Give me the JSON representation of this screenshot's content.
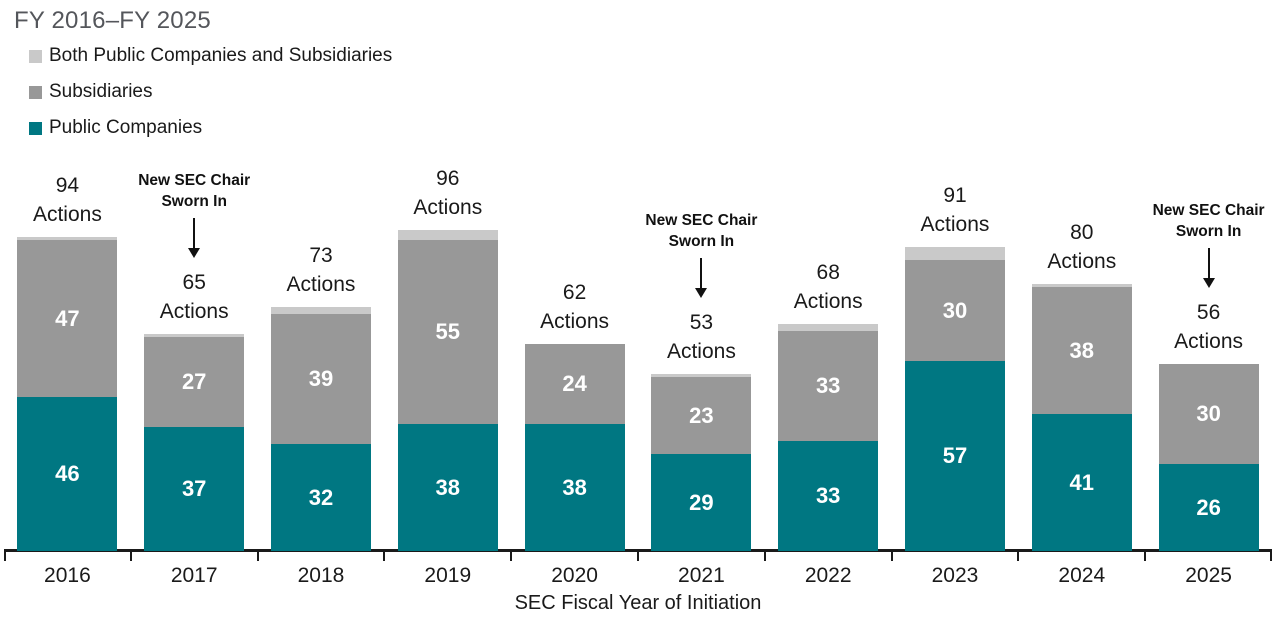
{
  "title": "FY 2016–FY 2025",
  "chart_data": {
    "type": "bar",
    "stacked": true,
    "title": "FY 2016–FY 2025",
    "xlabel": "SEC Fiscal Year of Initiation",
    "ylabel": "",
    "ylim": [
      0,
      96
    ],
    "grid": false,
    "legend_position": "top-left",
    "categories": [
      "2016",
      "2017",
      "2018",
      "2019",
      "2020",
      "2021",
      "2022",
      "2023",
      "2024",
      "2025"
    ],
    "series": [
      {
        "name": "Public Companies",
        "color": "#007782",
        "labeled": true,
        "values": [
          46,
          37,
          32,
          38,
          38,
          29,
          33,
          57,
          41,
          26
        ]
      },
      {
        "name": "Subsidiaries",
        "color": "#989898",
        "labeled": true,
        "values": [
          47,
          27,
          39,
          55,
          24,
          23,
          33,
          30,
          38,
          30
        ]
      },
      {
        "name": "Both Public Companies and Subsidiaries",
        "color": "#C9C9C9",
        "labeled": false,
        "values": [
          1,
          1,
          2,
          3,
          0,
          1,
          2,
          4,
          1,
          0
        ]
      }
    ],
    "totals": [
      94,
      65,
      73,
      96,
      62,
      53,
      68,
      91,
      80,
      56
    ],
    "total_label_word": "Actions",
    "annotations": [
      {
        "category": "2017",
        "lines": [
          "New SEC Chair",
          "Sworn In"
        ]
      },
      {
        "category": "2021",
        "lines": [
          "New SEC Chair",
          "Sworn In"
        ]
      },
      {
        "category": "2025",
        "lines": [
          "New SEC Chair",
          "Sworn In"
        ]
      }
    ],
    "legend": [
      {
        "label": "Both Public Companies and Subsidiaries",
        "color": "#C9C9C9"
      },
      {
        "label": "Subsidiaries",
        "color": "#989898"
      },
      {
        "label": "Public Companies",
        "color": "#007782"
      }
    ]
  }
}
